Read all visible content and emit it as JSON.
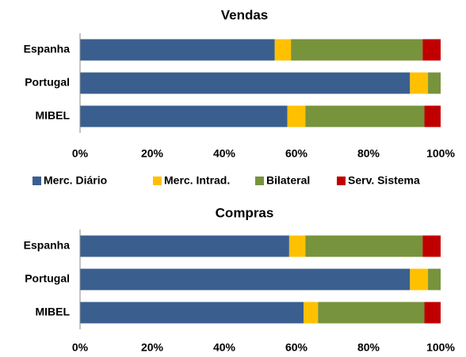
{
  "chart_data": [
    {
      "type": "stacked-bar-horizontal",
      "title": "Vendas",
      "categories": [
        "Espanha",
        "Portugal",
        "MIBEL"
      ],
      "series": [
        {
          "name": "Merc. Diário",
          "color": "#3a5f8f",
          "values": [
            54,
            91.5,
            57.5
          ]
        },
        {
          "name": "Merc. Intrad.",
          "color": "#ffc000",
          "values": [
            4.5,
            5,
            5
          ]
        },
        {
          "name": "Bilateral",
          "color": "#77933c",
          "values": [
            36.5,
            3.5,
            33
          ]
        },
        {
          "name": "Serv. Sistema",
          "color": "#c00000",
          "values": [
            5,
            0,
            4.5
          ]
        }
      ],
      "xlim": [
        0,
        100
      ],
      "xticks": [
        {
          "value": 0,
          "label": "0%"
        },
        {
          "value": 20,
          "label": "20%"
        },
        {
          "value": 40,
          "label": "40%"
        },
        {
          "value": 60,
          "label": "60%"
        },
        {
          "value": 80,
          "label": "80%"
        },
        {
          "value": 100,
          "label": "100%"
        }
      ],
      "legend": "bottom"
    },
    {
      "type": "stacked-bar-horizontal",
      "title": "Compras",
      "categories": [
        "Espanha",
        "Portugal",
        "MIBEL"
      ],
      "series": [
        {
          "color": "#3a5f8f",
          "values": [
            58,
            91.5,
            62
          ]
        },
        {
          "color": "#ffc000",
          "values": [
            4.5,
            5,
            4
          ]
        },
        {
          "color": "#77933c",
          "values": [
            32.5,
            3.5,
            29.5
          ]
        },
        {
          "color": "#c00000",
          "values": [
            5,
            0,
            4.5
          ]
        }
      ],
      "xlim": [
        0,
        100
      ],
      "xticks": [
        {
          "value": 0,
          "label": "0%"
        },
        {
          "value": 20,
          "label": "20%"
        },
        {
          "value": 40,
          "label": "40%"
        },
        {
          "value": 60,
          "label": "60%"
        },
        {
          "value": 80,
          "label": "80%"
        },
        {
          "value": 100,
          "label": "100%"
        }
      ]
    }
  ]
}
